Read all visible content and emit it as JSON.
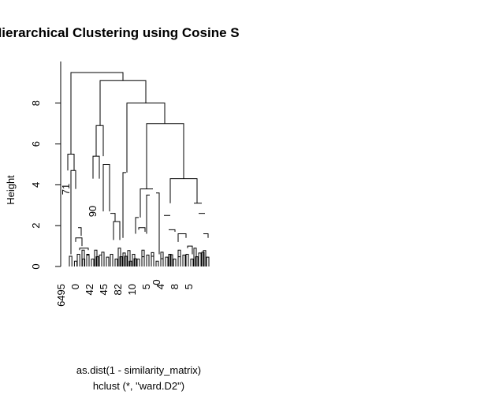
{
  "chart_data": {
    "type": "dendrogram",
    "title": "Hierarchical Clustering using Cosine S",
    "ylabel": "Height",
    "xlabel_line1": "as.dist(1 - similarity_matrix)",
    "xlabel_line2": "hclust (*, \"ward.D2\")",
    "ylim": [
      0,
      9.6
    ],
    "yticks": [
      0,
      2,
      4,
      6,
      8
    ],
    "grid": false,
    "inline_labels": [
      "71",
      "90",
      "0"
    ],
    "leaf_label_fragments": [
      "6495",
      "0",
      "42",
      "45",
      "82",
      "10",
      "5",
      "4",
      "8",
      "5"
    ],
    "merge_heights": {
      "root": 9.5,
      "level2": 9.1,
      "level3": 8.0,
      "level4": 7.0,
      "left_cluster": 5.5,
      "mid_cluster": 6.9,
      "right_cluster": 4.3,
      "inner_right": 3.8
    },
    "colors": {
      "line": "#000000",
      "background": "#ffffff"
    }
  }
}
